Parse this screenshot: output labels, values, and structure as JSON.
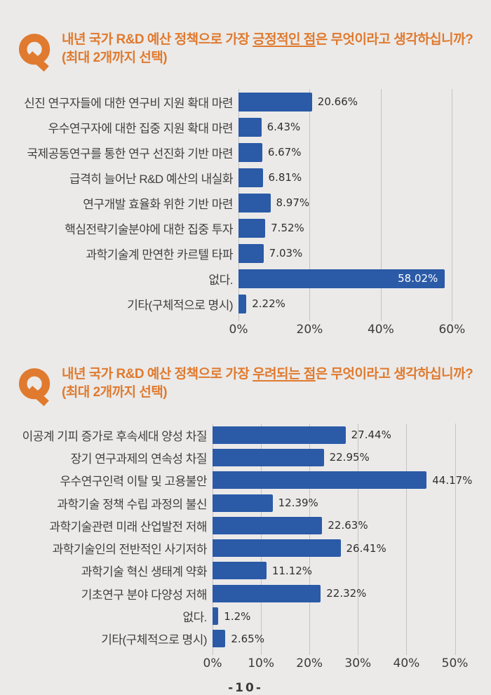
{
  "page": {
    "background": "#EBEAE9",
    "footer_page_number": "-10-"
  },
  "colors": {
    "bar_blue": "#2B5AA7",
    "title_orange": "#E07A2E",
    "text_dark": "#3F3F3F",
    "gridline": "#C6C4C3",
    "inside_value_label": "#FFFFFF"
  },
  "charts": [
    {
      "icon": "q-mark-icon",
      "header": {
        "prefix": "내년 국가 R&D 예산 정책으로 가장 ",
        "underlined": "긍정적인 점",
        "suffix": "은 무엇이라고 생각하십니까?",
        "line2": "(최대 2개까지 선택)"
      }
    },
    {
      "icon": "q-mark-icon",
      "header": {
        "prefix": "내년 국가 R&D 예산 정책으로 가장 ",
        "underlined": "우려되는 점",
        "suffix": "은 무엇이라고 생각하십니까?",
        "line2": "(최대 2개까지 선택)"
      }
    }
  ],
  "chart_data": [
    {
      "type": "bar",
      "orientation": "horizontal",
      "title": "내년 국가 R&D 예산 정책으로 가장 긍정적인 점은 무엇이라고 생각하십니까? (최대 2개까지 선택)",
      "categories": [
        "신진 연구자들에 대한 연구비 지원 확대 마련",
        "우수연구자에 대한 집중 지원 확대 마련",
        "국제공동연구를 통한 연구 선진화 기반 마련",
        "급격히 늘어난 R&D 예산의 내실화",
        "연구개발 효율화 위한 기반 마련",
        "핵심전략기술분야에 대한 집중 투자",
        "과학기술계 만연한 카르텔 타파",
        "없다.",
        "기타(구체적으로 명시)"
      ],
      "values": [
        20.66,
        6.43,
        6.67,
        6.81,
        8.97,
        7.52,
        7.03,
        58.02,
        2.22
      ],
      "value_labels": [
        "20.66%",
        "6.43%",
        "6.67%",
        "6.81%",
        "8.97%",
        "7.52%",
        "7.03%",
        "58.02%",
        "2.22%"
      ],
      "xlim": [
        0,
        69
      ],
      "xticks": [
        0,
        20,
        40,
        60
      ],
      "xtick_labels": [
        "0%",
        "20%",
        "40%",
        "60%"
      ],
      "bar_color": "#2B5AA7",
      "grid": true,
      "legend": "none"
    },
    {
      "type": "bar",
      "orientation": "horizontal",
      "title": "내년 국가 R&D 예산 정책으로 가장 우려되는 점은 무엇이라고 생각하십니까? (최대 2개까지 선택)",
      "categories": [
        "이공계 기피 증가로 후속세대 양성 차질",
        "장기 연구과제의 연속성 차질",
        "우수연구인력 이탈 및 고용불안",
        "과학기술 정책 수립 과정의 불신",
        "과학기술관련 미래 산업발전 저해",
        "과학기술인의 전반적인 사기저하",
        "과학기술 혁신 생태계 약화",
        "기초연구 분야 다양성 저해",
        "없다.",
        "기타(구체적으로 명시)"
      ],
      "values": [
        27.44,
        22.95,
        44.17,
        12.39,
        22.63,
        26.41,
        11.12,
        22.32,
        1.2,
        2.65
      ],
      "value_labels": [
        "27.44%",
        "22.95%",
        "44.17%",
        "12.39%",
        "22.63%",
        "26.41%",
        "11.12%",
        "22.32%",
        "1.2%",
        "2.65%"
      ],
      "xlim": [
        0,
        56
      ],
      "xticks": [
        0,
        10,
        20,
        30,
        40,
        50
      ],
      "xtick_labels": [
        "0%",
        "10%",
        "20%",
        "30%",
        "40%",
        "50%"
      ],
      "bar_color": "#2B5AA7",
      "grid": true,
      "legend": "none"
    }
  ]
}
